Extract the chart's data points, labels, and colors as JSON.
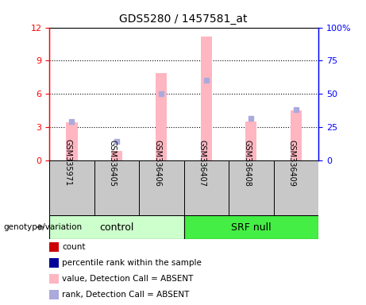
{
  "title": "GDS5280 / 1457581_at",
  "samples": [
    "GSM335971",
    "GSM336405",
    "GSM336406",
    "GSM336407",
    "GSM336408",
    "GSM336409"
  ],
  "pink_bars": [
    3.4,
    0.8,
    7.9,
    11.2,
    3.5,
    4.5
  ],
  "blue_squares_rank": [
    3.5,
    1.7,
    6.0,
    7.2,
    3.8,
    4.6
  ],
  "ylim_left": [
    0,
    12
  ],
  "ylim_right": [
    0,
    100
  ],
  "yticks_left": [
    0,
    3,
    6,
    9,
    12
  ],
  "ytick_labels_left": [
    "0",
    "3",
    "6",
    "9",
    "12"
  ],
  "yticks_right": [
    0,
    25,
    50,
    75,
    100
  ],
  "ytick_labels_right": [
    "0",
    "25",
    "50",
    "75",
    "100%"
  ],
  "pink_color": "#FFB6C1",
  "blue_color": "#AAAADD",
  "control_green": "#CCFFCC",
  "srfnull_green": "#44EE44",
  "gray_box": "#C8C8C8",
  "bar_width": 0.25,
  "group_label": "genotype/variation",
  "control_label": "control",
  "srfnull_label": "SRF null",
  "legend": [
    {
      "color": "#CC0000",
      "label": "count"
    },
    {
      "color": "#000099",
      "label": "percentile rank within the sample"
    },
    {
      "color": "#FFB6C1",
      "label": "value, Detection Call = ABSENT"
    },
    {
      "color": "#AAAADD",
      "label": "rank, Detection Call = ABSENT"
    }
  ]
}
